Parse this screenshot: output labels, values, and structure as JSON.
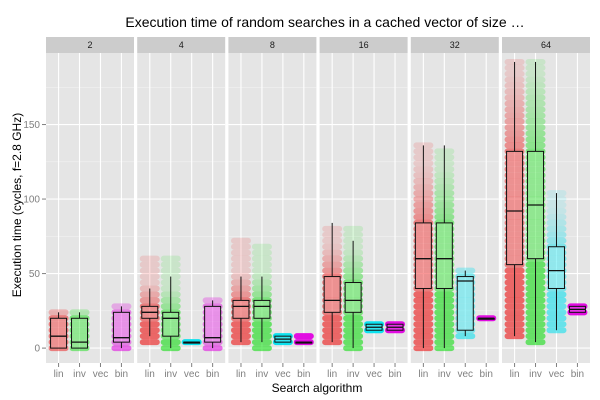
{
  "chart_data": {
    "type": "box",
    "title": "Execution time of random searches in a cached vector of size …",
    "xlabel": "Search algorithm",
    "ylabel": "Execution time (cycles, f=2.8 GHz)",
    "ylim": [
      -10,
      198
    ],
    "yticks": [
      0,
      50,
      100,
      150
    ],
    "categories": [
      "lin",
      "inv",
      "vec",
      "bin"
    ],
    "colors": {
      "lin": "#ee0000",
      "inv": "#00dd00",
      "vec": "#00e0ee",
      "bin": "#e000e0"
    },
    "grid": true,
    "facets": [
      {
        "label": "2",
        "boxes": {
          "lin": {
            "lo": 0,
            "q1": 0,
            "med": 8,
            "q3": 20,
            "hi": 24,
            "pts": [
              0,
              24
            ]
          },
          "inv": {
            "lo": 0,
            "q1": 0,
            "med": 4,
            "q3": 20,
            "hi": 24,
            "pts": [
              0,
              24
            ]
          },
          "bin": {
            "lo": 0,
            "q1": 4,
            "med": 7,
            "q3": 24,
            "hi": 28,
            "pts": [
              0,
              28
            ]
          }
        }
      },
      {
        "label": "4",
        "boxes": {
          "lin": {
            "lo": 8,
            "q1": 20,
            "med": 24,
            "q3": 28,
            "hi": 40,
            "pts": [
              4,
              60
            ]
          },
          "inv": {
            "lo": 0,
            "q1": 8,
            "med": 20,
            "q3": 24,
            "hi": 48,
            "pts": [
              0,
              60
            ]
          },
          "vec": {
            "lo": 4,
            "q1": 4,
            "med": 4,
            "q3": 4,
            "hi": 4,
            "pts": [
              4,
              4
            ]
          },
          "bin": {
            "lo": 0,
            "q1": 4,
            "med": 7,
            "q3": 28,
            "hi": 32,
            "pts": [
              0,
              32
            ]
          }
        }
      },
      {
        "label": "8",
        "boxes": {
          "lin": {
            "lo": 4,
            "q1": 20,
            "med": 28,
            "q3": 32,
            "hi": 48,
            "pts": [
              4,
              72
            ]
          },
          "inv": {
            "lo": 4,
            "q1": 20,
            "med": 28,
            "q3": 32,
            "hi": 48,
            "pts": [
              0,
              68
            ]
          },
          "vec": {
            "lo": 4,
            "q1": 4,
            "med": 6,
            "q3": 8,
            "hi": 8,
            "pts": [
              4,
              8
            ]
          },
          "bin": {
            "lo": 4,
            "q1": 4,
            "med": 4,
            "q3": 4,
            "hi": 4,
            "pts": [
              4,
              8
            ]
          }
        }
      },
      {
        "label": "16",
        "boxes": {
          "lin": {
            "lo": 4,
            "q1": 24,
            "med": 32,
            "q3": 48,
            "hi": 84,
            "pts": [
              4,
              80
            ]
          },
          "inv": {
            "lo": 0,
            "q1": 24,
            "med": 32,
            "q3": 44,
            "hi": 72,
            "pts": [
              0,
              80
            ]
          },
          "vec": {
            "lo": 12,
            "q1": 12,
            "med": 14,
            "q3": 16,
            "hi": 16,
            "pts": [
              12,
              16
            ]
          },
          "bin": {
            "lo": 12,
            "q1": 12,
            "med": 14,
            "q3": 16,
            "hi": 16,
            "pts": [
              12,
              16
            ]
          }
        }
      },
      {
        "label": "32",
        "boxes": {
          "lin": {
            "lo": 0,
            "q1": 40,
            "med": 60,
            "q3": 84,
            "hi": 136,
            "pts": [
              0,
              136
            ]
          },
          "inv": {
            "lo": 0,
            "q1": 40,
            "med": 60,
            "q3": 84,
            "hi": 136,
            "pts": [
              0,
              132
            ]
          },
          "vec": {
            "lo": 8,
            "q1": 12,
            "med": 45,
            "q3": 48,
            "hi": 52,
            "pts": [
              8,
              52
            ]
          },
          "bin": {
            "lo": 20,
            "q1": 20,
            "med": 20,
            "q3": 20,
            "hi": 20,
            "pts": [
              20,
              20
            ]
          }
        }
      },
      {
        "label": "64",
        "boxes": {
          "lin": {
            "lo": 8,
            "q1": 56,
            "med": 92,
            "q3": 132,
            "hi": 192,
            "pts": [
              8,
              192
            ]
          },
          "inv": {
            "lo": 4,
            "q1": 60,
            "med": 96,
            "q3": 132,
            "hi": 192,
            "pts": [
              4,
              192
            ]
          },
          "vec": {
            "lo": 12,
            "q1": 40,
            "med": 52,
            "q3": 68,
            "hi": 104,
            "pts": [
              12,
              104
            ]
          },
          "bin": {
            "lo": 24,
            "q1": 24,
            "med": 26,
            "q3": 28,
            "hi": 28,
            "pts": [
              24,
              28
            ]
          }
        }
      }
    ]
  }
}
